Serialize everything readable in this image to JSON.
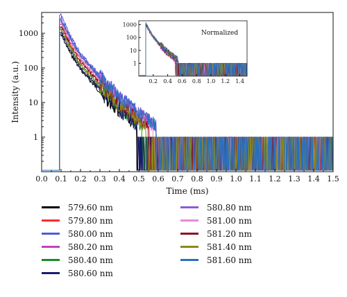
{
  "chart_data": [
    {
      "type": "line",
      "title": "",
      "xlabel": "Time (ms)",
      "ylabel": "Intensity (a.u.)",
      "xlim": [
        0.0,
        1.5
      ],
      "ylim": [
        0.1,
        4000
      ],
      "yscale": "log",
      "x_ticks": [
        "0.0",
        "0.1",
        "0.2",
        "0.3",
        "0.4",
        "0.5",
        "0.6",
        "0.7",
        "0.8",
        "0.9",
        "1.0",
        "1.1",
        "1.2",
        "1.3",
        "1.4",
        "1.5"
      ],
      "y_ticks": [
        "1",
        "10",
        "100",
        "1000"
      ],
      "legend_position": "bottom",
      "series": [
        {
          "name": "579.60 nm",
          "color": "#000000",
          "x": [
            0.1,
            0.15,
            0.2,
            0.3,
            0.4,
            0.5,
            0.6
          ],
          "y": [
            900,
            250,
            90,
            20,
            5,
            2,
            1
          ]
        },
        {
          "name": "579.80 nm",
          "color": "#ff2a2a",
          "x": [
            0.1,
            0.15,
            0.2,
            0.3,
            0.4,
            0.5,
            0.6,
            0.8,
            1.0,
            1.2,
            1.5
          ],
          "y": [
            1800,
            500,
            170,
            40,
            10,
            3.5,
            1.5,
            1,
            1,
            1,
            1
          ]
        },
        {
          "name": "580.00 nm",
          "color": "#4a5bdc",
          "x": [
            0.1,
            0.15,
            0.2,
            0.3,
            0.4,
            0.5,
            0.6,
            0.8,
            1.0,
            1.2,
            1.5
          ],
          "y": [
            3300,
            800,
            260,
            60,
            15,
            5,
            2,
            1,
            1,
            1,
            1
          ]
        },
        {
          "name": "580.20 nm",
          "color": "#c040c0",
          "x": [
            0.1,
            0.15,
            0.2,
            0.3,
            0.4,
            0.5,
            0.6,
            0.8,
            1.0,
            1.2,
            1.5
          ],
          "y": [
            2200,
            650,
            220,
            50,
            13,
            4.5,
            2,
            1,
            1,
            1,
            1
          ]
        },
        {
          "name": "580.40 nm",
          "color": "#1a8a2a",
          "x": [
            0.1,
            0.15,
            0.2,
            0.3,
            0.4,
            0.5,
            0.6,
            0.8,
            1.0
          ],
          "y": [
            1400,
            380,
            120,
            28,
            7,
            2.5,
            1.2,
            1,
            1
          ]
        },
        {
          "name": "580.60 nm",
          "color": "#1a1a6e",
          "x": [
            0.1,
            0.15,
            0.2,
            0.3,
            0.4,
            0.5,
            0.6,
            0.8,
            1.0
          ],
          "y": [
            1100,
            300,
            100,
            24,
            6,
            2,
            1,
            1,
            1
          ]
        },
        {
          "name": "580.80 nm",
          "color": "#8a5ad8",
          "x": [
            0.1,
            0.15,
            0.2,
            0.3,
            0.4,
            0.5,
            0.6,
            0.8,
            1.0,
            1.2,
            1.5
          ],
          "y": [
            2600,
            720,
            240,
            55,
            14,
            5,
            2,
            1,
            1,
            1,
            1
          ]
        },
        {
          "name": "581.00 nm",
          "color": "#e68ad8",
          "x": [
            0.1,
            0.15,
            0.2,
            0.3,
            0.4,
            0.5,
            0.6,
            0.8,
            1.0,
            1.2,
            1.5
          ],
          "y": [
            2000,
            560,
            190,
            45,
            11,
            4,
            1.8,
            1,
            1,
            1,
            1
          ]
        },
        {
          "name": "581.20 nm",
          "color": "#8b1020",
          "x": [
            0.1,
            0.15,
            0.2,
            0.3,
            0.4,
            0.5,
            0.6,
            0.8,
            1.0,
            1.2,
            1.5
          ],
          "y": [
            1600,
            450,
            150,
            35,
            9,
            3.2,
            1.5,
            1,
            1,
            1,
            1
          ]
        },
        {
          "name": "581.40 nm",
          "color": "#8a8a1a",
          "x": [
            0.1,
            0.15,
            0.2,
            0.3,
            0.4,
            0.5,
            0.6,
            0.8,
            1.0,
            1.2,
            1.5
          ],
          "y": [
            1300,
            360,
            120,
            30,
            8,
            3,
            1.3,
            1,
            1,
            1,
            1
          ]
        },
        {
          "name": "581.60 nm",
          "color": "#2a6fc0",
          "x": [
            0.1,
            0.15,
            0.2,
            0.3,
            0.4,
            0.5,
            0.6,
            0.8,
            1.0,
            1.2,
            1.5
          ],
          "y": [
            2400,
            680,
            230,
            52,
            14,
            4.8,
            2,
            1,
            1,
            1,
            1
          ]
        }
      ]
    },
    {
      "type": "line",
      "title": "Normalized",
      "xlim": [
        0.0,
        1.5
      ],
      "ylim": [
        0.1,
        2000
      ],
      "yscale": "log",
      "x_ticks": [
        "0.2",
        "0.4",
        "0.6",
        "0.8",
        "1.0",
        "1.2",
        "1.4"
      ],
      "y_ticks": [
        "1",
        "10",
        "100",
        "1000"
      ],
      "series": [
        {
          "color": "#2a6fc0",
          "x": [
            0.1,
            0.15,
            0.2,
            0.3,
            0.4,
            0.5,
            0.6,
            0.8,
            1.0,
            1.2,
            1.5
          ],
          "y": [
            1100,
            320,
            110,
            25,
            7,
            2.4,
            1.2,
            1,
            1,
            1,
            1
          ]
        }
      ]
    }
  ]
}
